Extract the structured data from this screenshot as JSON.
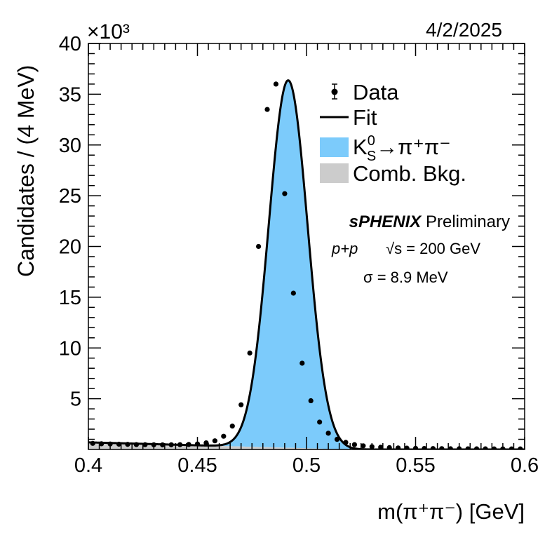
{
  "header": {
    "date": "4/2/2025"
  },
  "chart_data": {
    "type": "scatter",
    "x_unit_label": "m(π⁺π⁻) [GeV]",
    "ylabel": "Candidates / (4 MeV)",
    "y_multiplier": "×10³",
    "xlim": [
      0.4,
      0.6
    ],
    "ylim": [
      0,
      40000
    ],
    "x_ticks": [
      "0.4",
      "0.45",
      "0.5",
      "0.55",
      "0.6"
    ],
    "y_ticks": [
      "5",
      "10",
      "15",
      "20",
      "25",
      "30",
      "35",
      "40"
    ],
    "legend": {
      "position": "top-right",
      "entries": [
        {
          "label": "Data",
          "style": "points",
          "color": "#000000"
        },
        {
          "label": "Fit",
          "style": "line",
          "color": "#000000"
        },
        {
          "label": "K⁰S→π⁺π⁻",
          "label_base": "K",
          "label_sup": "0",
          "label_sub": "S",
          "label_rest": "→π⁺π⁻",
          "style": "fill",
          "color": "#7ccbfb"
        },
        {
          "label": "Comb. Bkg.",
          "style": "fill",
          "color": "#cccccc"
        }
      ]
    },
    "annotations": {
      "experiment_bold": "sPHENIX",
      "experiment_status": "Preliminary",
      "collision": "p+p",
      "energy": "√s = 200 GeV",
      "resolution": "σ = 8.9 MeV"
    },
    "series": [
      {
        "name": "Data",
        "type": "points",
        "x": [
          0.402,
          0.406,
          0.41,
          0.414,
          0.418,
          0.422,
          0.426,
          0.43,
          0.434,
          0.438,
          0.442,
          0.446,
          0.45,
          0.454,
          0.458,
          0.462,
          0.466,
          0.47,
          0.474,
          0.478,
          0.482,
          0.486,
          0.49,
          0.494,
          0.498,
          0.502,
          0.506,
          0.51,
          0.514,
          0.518,
          0.522,
          0.526,
          0.53,
          0.534,
          0.538,
          0.542,
          0.546,
          0.55,
          0.554,
          0.558,
          0.562,
          0.566,
          0.57,
          0.574,
          0.578,
          0.582,
          0.586,
          0.59,
          0.594,
          0.598
        ],
        "y": [
          600,
          560,
          540,
          520,
          500,
          480,
          470,
          460,
          450,
          460,
          470,
          490,
          540,
          650,
          850,
          1300,
          2300,
          4400,
          9500,
          20000,
          33500,
          36000,
          25200,
          15400,
          8500,
          4800,
          2700,
          1600,
          1000,
          700,
          480,
          360,
          270,
          220,
          180,
          150,
          130,
          110,
          100,
          90,
          80,
          75,
          70,
          65,
          60,
          60,
          55,
          55,
          50,
          50
        ]
      },
      {
        "name": "Fit",
        "type": "line",
        "color": "#000000",
        "signal_model": {
          "mean": 0.4916,
          "sigma": 0.0089,
          "amplitude": 36200
        },
        "background_model": {
          "value_at_0.40": 700,
          "value_at_0.52": 0
        }
      },
      {
        "name": "K0S→π+π−",
        "type": "area",
        "color": "#7ccbfb"
      },
      {
        "name": "Comb. Bkg.",
        "type": "area",
        "color": "#cccccc"
      }
    ]
  }
}
